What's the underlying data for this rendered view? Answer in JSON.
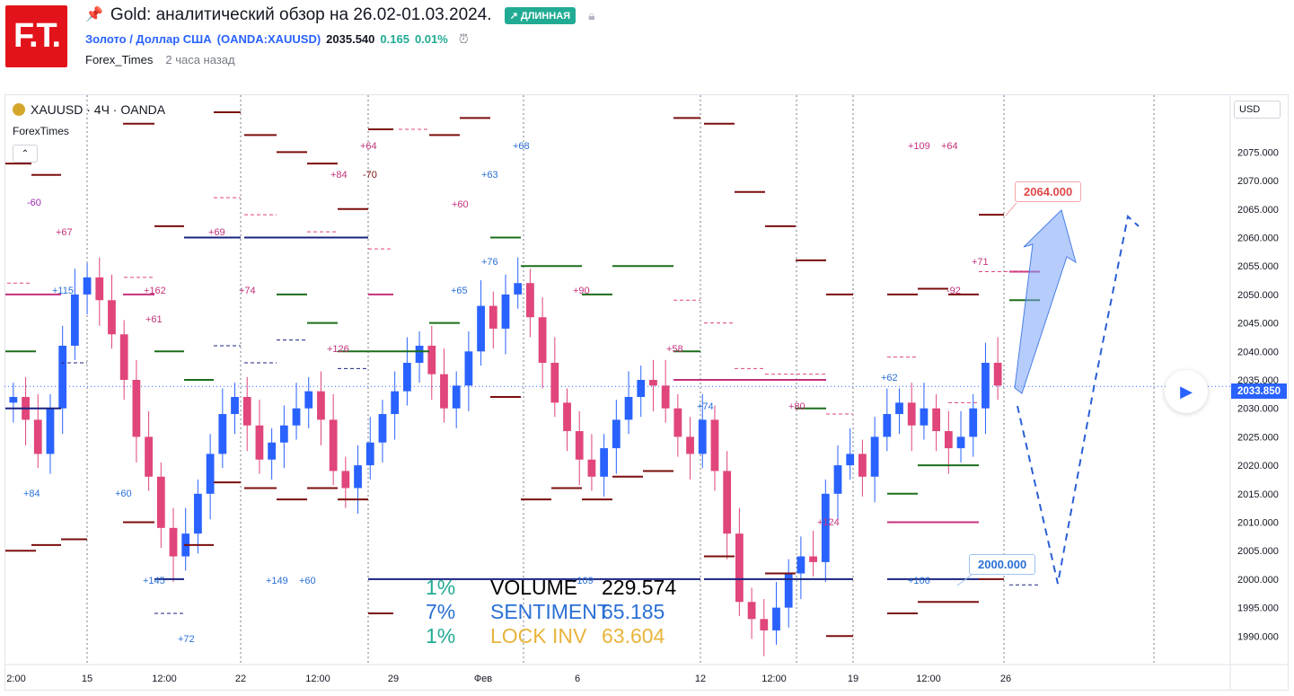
{
  "header": {
    "logo_text": "F.T.",
    "pin_icon": "pin-icon",
    "title": "Gold: аналитический обзор на 26.02-01.03.2024.",
    "badge": "↗ ДЛИННАЯ",
    "lock_icon": "lock-icon",
    "symbol_name": "Золото / Доллар США",
    "symbol_code": "(OANDA:XAUUSD)",
    "price": "2035.540",
    "change": "0.165",
    "change_pct": "0.01%",
    "author": "Forex_Times",
    "time_ago": "2 часа назад"
  },
  "chart_legend": {
    "symbol": "XAUUSD · 4Ч · OANDA",
    "indicator": "ForexTimes",
    "collapse": "⌃"
  },
  "currency_button": "USD",
  "current_price_tag": "2033.850",
  "callouts": {
    "target_high": "2064.000",
    "target_low": "2000.000"
  },
  "stats": [
    {
      "pct": "1%",
      "label": "VOLUME",
      "value": "229.574",
      "color": "#000000",
      "pct_color": "#22ab94"
    },
    {
      "pct": "7%",
      "label": "SENTIMENT",
      "value": "65.185",
      "color": "#2a6fd6",
      "pct_color": "#2a6fd6"
    },
    {
      "pct": "1%",
      "label": "LOCK INV",
      "value": "63.604",
      "color": "#e8b43c",
      "pct_color": "#22ab94"
    }
  ],
  "chart_data": {
    "type": "candlestick",
    "title": "XAUUSD · 4Ч · OANDA",
    "y_axis": {
      "min": 1985,
      "max": 2085,
      "ticks": [
        2075,
        2070,
        2065,
        2060,
        2055,
        2050,
        2045,
        2040,
        2035,
        2030,
        2025,
        2020,
        2015,
        2010,
        2005,
        2000,
        1995,
        1990
      ]
    },
    "x_tick_labels": [
      "2:00",
      "15",
      "12:00",
      "22",
      "12:00",
      "29",
      "Фев",
      "6",
      "12",
      "12:00",
      "19",
      "12:00",
      "26"
    ],
    "current_price": 2033.85,
    "forecast_path": [
      2033.85,
      2000,
      2064
    ],
    "resistance_target": 2064,
    "support_target": 2000,
    "closes": [
      2032,
      2028,
      2022,
      2030,
      2041,
      2050,
      2053,
      2049,
      2043,
      2035,
      2025,
      2018,
      2009,
      2004,
      2008,
      2015,
      2022,
      2029,
      2032,
      2027,
      2021,
      2024,
      2027,
      2030,
      2033,
      2028,
      2019,
      2016,
      2020,
      2024,
      2029,
      2033,
      2038,
      2041,
      2036,
      2030,
      2034,
      2040,
      2048,
      2044,
      2050,
      2052,
      2046,
      2038,
      2031,
      2026,
      2021,
      2018,
      2023,
      2028,
      2032,
      2035,
      2034,
      2030,
      2025,
      2022,
      2028,
      2019,
      2008,
      1996,
      1993,
      1991,
      1995,
      2001,
      2004,
      2003,
      2015,
      2020,
      2022,
      2018,
      2025,
      2029,
      2031,
      2027,
      2030,
      2026,
      2023,
      2025,
      2030,
      2038,
      2034
    ]
  }
}
